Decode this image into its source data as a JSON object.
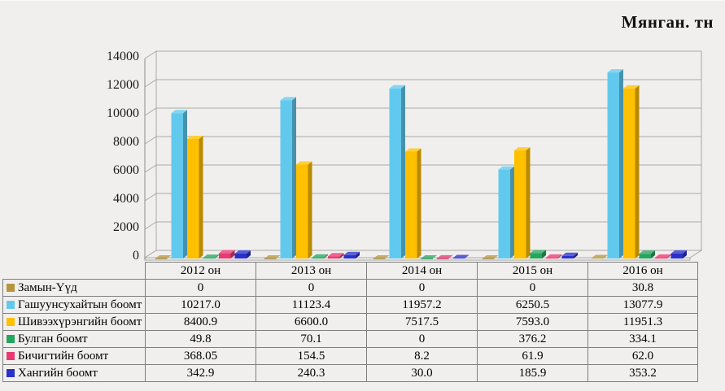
{
  "title": "Мянган. тн",
  "colors": {
    "background": "#f1efee",
    "grid_line": "#a8a8a8",
    "axis_line": "#8c8c8c",
    "table_border": "#7f7f7f",
    "text": "#000000"
  },
  "chart_data": {
    "type": "bar",
    "variant": "3d-clustered-column",
    "title": "Мянган. тн",
    "categories": [
      "2012 он",
      "2013 он",
      "2014 он",
      "2015 он",
      "2016 он"
    ],
    "series": [
      {
        "name": "Замын-Үүд",
        "color": "#b6953f",
        "values": [
          0,
          0,
          0,
          0,
          30.8
        ]
      },
      {
        "name": "Гашуунсухайтын боомт",
        "color": "#62c9ee",
        "values": [
          10217.0,
          11123.4,
          11957.2,
          6250.5,
          13077.9
        ]
      },
      {
        "name": "Шивээхүрэнгийн боомт",
        "color": "#ffc000",
        "values": [
          8400.9,
          6600.0,
          7517.5,
          7593.0,
          11951.3
        ]
      },
      {
        "name": "Булган боомт",
        "color": "#27a55e",
        "values": [
          49.8,
          70.1,
          0,
          376.2,
          334.1
        ]
      },
      {
        "name": "Бичигтийн боомт",
        "color": "#e73a72",
        "values": [
          368.05,
          154.5,
          8.2,
          61.9,
          62.0
        ]
      },
      {
        "name": "Хангийн боомт",
        "color": "#2a31c9",
        "values": [
          342.9,
          240.3,
          30.0,
          185.9,
          353.2
        ]
      }
    ],
    "xlabel": "",
    "ylabel": "",
    "ylim": [
      0,
      14000
    ],
    "ytick_step": 2000,
    "ytick_labels": [
      "0",
      "2000",
      "4000",
      "6000",
      "8000",
      "10000",
      "12000",
      "14000"
    ],
    "grid": true,
    "legend_position": "table-left-column"
  },
  "table": {
    "value_display": [
      [
        "0",
        "0",
        "0",
        "0",
        "30.8"
      ],
      [
        "10217.0",
        "11123.4",
        "11957.2",
        "6250.5",
        "13077.9"
      ],
      [
        "8400.9",
        "6600.0",
        "7517.5",
        "7593.0",
        "11951.3"
      ],
      [
        "49.8",
        "70.1",
        "0",
        "376.2",
        "334.1"
      ],
      [
        "368.05",
        "154.5",
        "8.2",
        "61.9",
        "62.0"
      ],
      [
        "342.9",
        "240.3",
        "30.0",
        "185.9",
        "353.2"
      ]
    ]
  }
}
